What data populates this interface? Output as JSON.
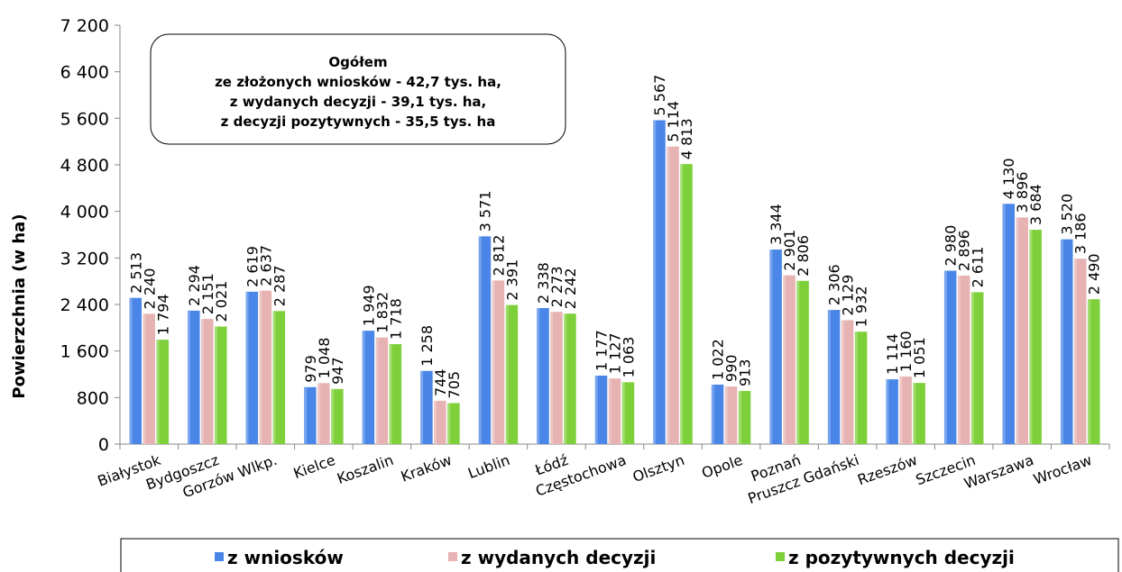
{
  "chart_data": {
    "type": "bar",
    "title": "",
    "ylabel": "Powierzchnia (w ha)",
    "xlabel": "",
    "ylim": [
      0,
      7200
    ],
    "yticks": [
      0,
      800,
      1600,
      2400,
      3200,
      4000,
      4800,
      5600,
      6400,
      7200
    ],
    "ytick_labels": [
      "0",
      "800",
      "1 600",
      "2 400",
      "3 200",
      "4 000",
      "4 800",
      "5 600",
      "6 400",
      "7 200"
    ],
    "categories": [
      "Białystok",
      "Bydgoszcz",
      "Gorzów Wlkp.",
      "Kielce",
      "Koszalin",
      "Kraków",
      "Lublin",
      "Łódź",
      "Częstochowa",
      "Olsztyn",
      "Opole",
      "Poznań",
      "Pruszcz Gdański",
      "Rzeszów",
      "Szczecin",
      "Warszawa",
      "Wrocław"
    ],
    "series": [
      {
        "name": "z wniosków",
        "color": "#4a86e8",
        "values": [
          2513,
          2294,
          2619,
          979,
          1949,
          1258,
          3571,
          2338,
          1177,
          5567,
          1022,
          3344,
          2306,
          1114,
          2980,
          4130,
          3520
        ],
        "labels": [
          "2 513",
          "2 294",
          "2 619",
          "979",
          "1 949",
          "1 258",
          "3 571",
          "2 338",
          "1 177",
          "5 567",
          "1 022",
          "3 344",
          "2 306",
          "1 114",
          "2 980",
          "4 130",
          "3 520"
        ]
      },
      {
        "name": "z wydanych decyzji",
        "color": "#e6b2b2",
        "values": [
          2240,
          2151,
          2637,
          1048,
          1832,
          744,
          2812,
          2273,
          1127,
          5114,
          990,
          2901,
          2129,
          1160,
          2896,
          3896,
          3186
        ],
        "labels": [
          "2 240",
          "2 151",
          "2 637",
          "1 048",
          "1 832",
          "744",
          "2 812",
          "2 273",
          "1 127",
          "5 114",
          "990",
          "2 901",
          "2 129",
          "1 160",
          "2 896",
          "3 896",
          "3 186"
        ]
      },
      {
        "name": "z pozytywnych decyzji",
        "color": "#7ed03a",
        "values": [
          1794,
          2021,
          2287,
          947,
          1718,
          705,
          2391,
          2242,
          1063,
          4813,
          913,
          2806,
          1932,
          1051,
          2611,
          3684,
          2490
        ],
        "labels": [
          "1 794",
          "2 021",
          "2 287",
          "947",
          "1 718",
          "705",
          "2 391",
          "2 242",
          "1 063",
          "4 813",
          "913",
          "2 806",
          "1 932",
          "1 051",
          "2 611",
          "3 684",
          "2 490"
        ]
      }
    ],
    "annotation": [
      "Ogółem",
      "ze złożonych wniosków - 42,7 tys. ha,",
      "z wydanych decyzji - 39,1 tys. ha,",
      "z decyzji pozytywnych - 35,5 tys. ha"
    ],
    "grid": false,
    "legend_position": "bottom"
  }
}
